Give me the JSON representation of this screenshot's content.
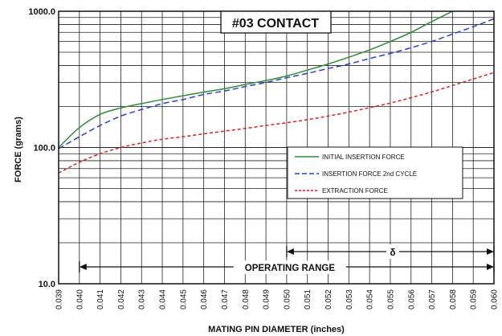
{
  "chart_data": {
    "type": "line",
    "title": "#03 CONTACT",
    "xlabel": "MATING PIN  DIAMETER (inches)",
    "ylabel": "FORCE (grams)",
    "yscale": "log",
    "xlim": [
      0.039,
      0.06
    ],
    "ylim": [
      10,
      1000
    ],
    "x_ticks": [
      "0.039",
      "0.040",
      "0.041",
      "0.042",
      "0.043",
      "0.044",
      "0.045",
      "0.046",
      "0.047",
      "0.048",
      "0.049",
      "0.050",
      "0.051",
      "0.052",
      "0.053",
      "0.054",
      "0.055",
      "0.056",
      "0.057",
      "0.058",
      "0.059",
      "0.060"
    ],
    "y_ticks": [
      "10.0",
      "100.0",
      "1000.0"
    ],
    "grid": true,
    "legend_position": "right",
    "series": [
      {
        "name": "INITIAL INSERTION FORCE",
        "color": "#2e8b3a",
        "style": "solid",
        "x": [
          0.039,
          0.04,
          0.041,
          0.042,
          0.043,
          0.044,
          0.045,
          0.046,
          0.047,
          0.048,
          0.049,
          0.05,
          0.051,
          0.052,
          0.053,
          0.054,
          0.055,
          0.056,
          0.057,
          0.058
        ],
        "y": [
          100,
          140,
          175,
          195,
          210,
          225,
          240,
          255,
          270,
          290,
          310,
          335,
          370,
          410,
          460,
          520,
          600,
          700,
          840,
          1000
        ]
      },
      {
        "name": "INSERTION FORCE 2nd CYCLE",
        "color": "#2a3fd0",
        "style": "dashed",
        "x": [
          0.039,
          0.04,
          0.041,
          0.042,
          0.043,
          0.044,
          0.045,
          0.046,
          0.047,
          0.048,
          0.049,
          0.05,
          0.051,
          0.052,
          0.053,
          0.054,
          0.055,
          0.056,
          0.057,
          0.058,
          0.059,
          0.06
        ],
        "y": [
          98,
          120,
          145,
          170,
          190,
          210,
          225,
          245,
          260,
          280,
          300,
          325,
          350,
          380,
          410,
          450,
          490,
          540,
          600,
          680,
          770,
          880
        ]
      },
      {
        "name": "EXTRACTION FORCE",
        "color": "#e0201e",
        "style": "dashed-fine",
        "x": [
          0.039,
          0.04,
          0.041,
          0.042,
          0.043,
          0.044,
          0.045,
          0.046,
          0.047,
          0.048,
          0.049,
          0.05,
          0.051,
          0.052,
          0.053,
          0.054,
          0.055,
          0.056,
          0.057,
          0.058,
          0.059,
          0.06
        ],
        "y": [
          65,
          78,
          90,
          100,
          108,
          115,
          120,
          126,
          132,
          138,
          145,
          152,
          160,
          170,
          182,
          196,
          212,
          232,
          256,
          285,
          318,
          355
        ]
      }
    ],
    "annotations": [
      {
        "text": "OPERATING RANGE",
        "x_from": 0.04,
        "x_to": 0.06
      },
      {
        "text": "δ",
        "x_from": 0.05,
        "x_to": 0.06
      }
    ]
  }
}
